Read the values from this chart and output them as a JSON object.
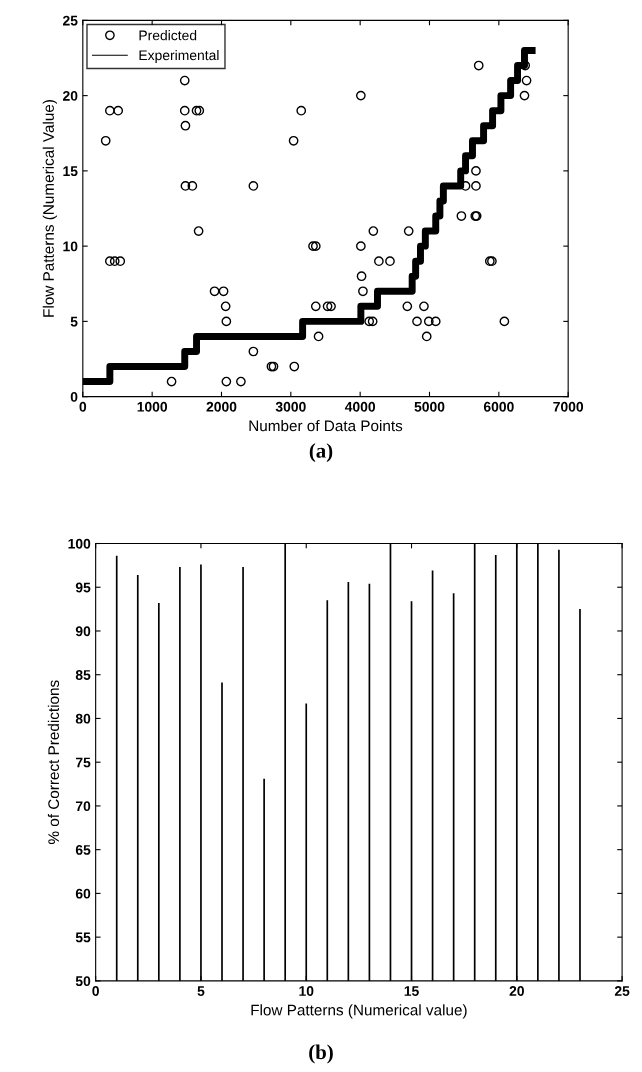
{
  "chart_data": [
    {
      "type": "scatter",
      "xlabel": "Number of Data Points",
      "ylabel": "Flow Patterns (Numerical Value)",
      "annotations": [
        "(a)"
      ],
      "xlim": [
        0,
        7000
      ],
      "xticks": [
        0,
        1000,
        2000,
        3000,
        4000,
        5000,
        6000,
        7000
      ],
      "ylim": [
        0,
        25
      ],
      "yticks": [
        0,
        5,
        10,
        15,
        20,
        25
      ],
      "legend": "top left",
      "grid": false,
      "series": [
        {
          "name": "Predicted",
          "type": "scatter",
          "marker": "circle",
          "color": "#000000",
          "x": [
            330,
            390,
            510,
            390,
            460,
            540,
            1470,
            1470,
            1640,
            1680,
            1480,
            1480,
            1580,
            1670,
            1280,
            1900,
            2030,
            2060,
            2070,
            2070,
            2280,
            2460,
            2460,
            2720,
            2750,
            3050,
            3040,
            3150,
            3320,
            3360,
            3360,
            3400,
            3530,
            3580,
            4010,
            4010,
            4020,
            4040,
            4190,
            4270,
            4430,
            4130,
            4180,
            4680,
            4700,
            4920,
            4820,
            4990,
            5090,
            4960,
            5460,
            5660,
            5680,
            5520,
            5670,
            5670,
            5710,
            5870,
            5900,
            6080,
            6380,
            6400,
            6370
          ],
          "values": [
            17,
            19,
            19,
            9,
            9,
            9,
            21,
            19,
            19,
            19,
            18,
            14,
            14,
            11,
            1,
            7,
            7,
            6,
            5,
            1,
            1,
            14,
            3,
            2,
            2,
            2,
            17,
            19,
            10,
            10,
            6,
            4,
            6,
            6,
            20,
            10,
            8,
            7,
            11,
            9,
            9,
            5,
            5,
            6,
            11,
            6,
            5,
            5,
            5,
            4,
            12,
            12,
            12,
            14,
            14,
            15,
            22,
            9,
            9,
            5,
            22,
            21,
            20
          ]
        },
        {
          "name": "Experimental",
          "type": "step",
          "color": "#000000",
          "x": [
            0,
            390,
            1470,
            1640,
            3170,
            4010,
            4250,
            4750,
            4800,
            4870,
            4940,
            5090,
            5150,
            5200,
            5450,
            5520,
            5620,
            5780,
            5910,
            6030,
            6170,
            6270,
            6370,
            6480
          ],
          "values": [
            1,
            2,
            3,
            4,
            5,
            6,
            7,
            8,
            9,
            10,
            11,
            12,
            13,
            14,
            15,
            16,
            17,
            18,
            19,
            20,
            21,
            22,
            23,
            23
          ]
        }
      ]
    },
    {
      "type": "bar",
      "xlabel": "Flow Patterns (Numerical value)",
      "ylabel": "% of Correct Predictions",
      "annotations": [
        "(b)"
      ],
      "xlim": [
        0,
        25
      ],
      "xticks": [
        0,
        5,
        10,
        15,
        20,
        25
      ],
      "ylim": [
        50,
        100
      ],
      "yticks": [
        50,
        55,
        60,
        65,
        70,
        75,
        80,
        85,
        90,
        95,
        100
      ],
      "grid": false,
      "x": [
        1,
        2,
        3,
        4,
        5,
        6,
        7,
        8,
        9,
        10,
        11,
        12,
        13,
        14,
        15,
        16,
        17,
        18,
        19,
        20,
        21,
        22,
        23
      ],
      "series": [
        {
          "color": "#000000",
          "values": [
            98.6,
            96.4,
            93.2,
            97.3,
            97.6,
            84.1,
            97.3,
            73.1,
            100,
            81.7,
            93.5,
            95.6,
            95.4,
            100,
            93.4,
            96.9,
            94.3,
            100,
            98.7,
            100,
            100,
            99.3,
            92.5
          ]
        }
      ]
    }
  ]
}
